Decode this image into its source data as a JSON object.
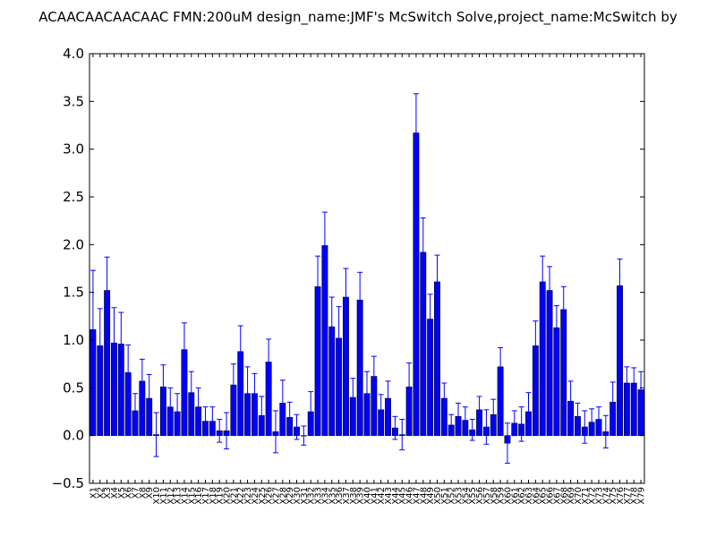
{
  "chart_data": {
    "type": "bar",
    "title": "ACAACAACAACAAC  FMN:200uM  design_name:JMF's McSwitch Solve,project_name:McSwitch by",
    "xlabel": "",
    "ylabel": "",
    "ylim": [
      -0.5,
      4.0
    ],
    "yticks": [
      "−0.5",
      "0.0",
      "0.5",
      "1.0",
      "1.5",
      "2.0",
      "2.5",
      "3.0",
      "3.5",
      "4.0"
    ],
    "grid": false,
    "bar_color": "#0000ff",
    "error_color": "#0000ff",
    "categories": [
      "X1",
      "X2",
      "X3",
      "X4",
      "X5",
      "X6",
      "X7",
      "X8",
      "X9",
      "X10",
      "X11",
      "X12",
      "X13",
      "X14",
      "X15",
      "X16",
      "X17",
      "X18",
      "X19",
      "X20",
      "X21",
      "X22",
      "X23",
      "X24",
      "X25",
      "X26",
      "X27",
      "X28",
      "X29",
      "X30",
      "X31",
      "X32",
      "X33",
      "X34",
      "X35",
      "X36",
      "X37",
      "X38",
      "X39",
      "X40",
      "X41",
      "X42",
      "X43",
      "X44",
      "X45",
      "X46",
      "X47",
      "X48",
      "X49",
      "X50",
      "X51",
      "X52",
      "X53",
      "X54",
      "X55",
      "X56",
      "X57",
      "X58",
      "X59",
      "X60",
      "X61",
      "X62",
      "X63",
      "X64",
      "X65",
      "X66",
      "X67",
      "X68",
      "X69",
      "X70",
      "X71",
      "X72",
      "X73",
      "X74",
      "X75",
      "X76",
      "X77",
      "X78",
      "X79"
    ],
    "values": [
      1.11,
      0.94,
      1.52,
      0.97,
      0.96,
      0.66,
      0.26,
      0.57,
      0.39,
      0.01,
      0.51,
      0.3,
      0.25,
      0.9,
      0.45,
      0.3,
      0.15,
      0.15,
      0.05,
      0.05,
      0.53,
      0.88,
      0.44,
      0.44,
      0.21,
      0.77,
      0.04,
      0.34,
      0.19,
      0.09,
      0.0,
      0.25,
      1.56,
      1.99,
      1.14,
      1.02,
      1.45,
      0.4,
      1.42,
      0.44,
      0.62,
      0.27,
      0.39,
      0.08,
      0.01,
      0.51,
      3.17,
      1.92,
      1.22,
      1.61,
      0.39,
      0.11,
      0.2,
      0.16,
      0.06,
      0.27,
      0.09,
      0.22,
      0.72,
      -0.08,
      0.13,
      0.12,
      0.25,
      0.94,
      1.61,
      1.52,
      1.13,
      1.32,
      0.36,
      0.2,
      0.09,
      0.14,
      0.17,
      0.04,
      0.35,
      1.57,
      0.55,
      0.55,
      0.48
    ],
    "errors": [
      0.62,
      0.39,
      0.35,
      0.37,
      0.33,
      0.29,
      0.18,
      0.23,
      0.25,
      0.23,
      0.23,
      0.2,
      0.19,
      0.28,
      0.22,
      0.2,
      0.15,
      0.15,
      0.12,
      0.19,
      0.22,
      0.27,
      0.28,
      0.21,
      0.2,
      0.24,
      0.22,
      0.24,
      0.16,
      0.13,
      0.1,
      0.21,
      0.32,
      0.35,
      0.31,
      0.33,
      0.3,
      0.2,
      0.29,
      0.23,
      0.21,
      0.16,
      0.18,
      0.12,
      0.16,
      0.25,
      0.41,
      0.36,
      0.26,
      0.28,
      0.16,
      0.11,
      0.14,
      0.14,
      0.11,
      0.14,
      0.18,
      0.16,
      0.2,
      0.21,
      0.13,
      0.18,
      0.2,
      0.26,
      0.27,
      0.25,
      0.23,
      0.24,
      0.21,
      0.14,
      0.17,
      0.14,
      0.13,
      0.17,
      0.21,
      0.28,
      0.17,
      0.16,
      0.19
    ]
  }
}
